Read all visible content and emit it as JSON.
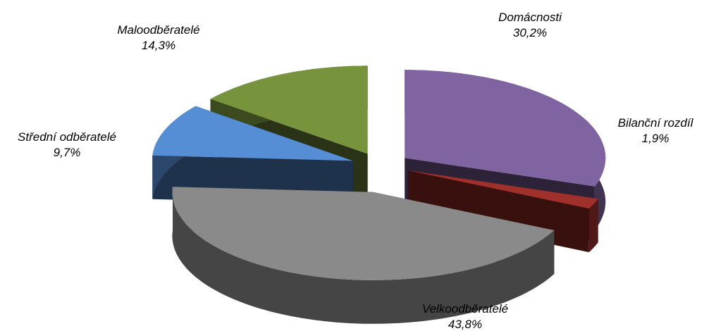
{
  "chart_data": {
    "type": "pie",
    "categories": [
      "Domácnosti",
      "Bilanční rozdíl",
      "Velkoodběratelé",
      "Střední odběratelé",
      "Maloodběratelé"
    ],
    "values": [
      30.2,
      1.9,
      43.8,
      9.7,
      14.3
    ],
    "value_labels": [
      "30,2%",
      "1,9%",
      "43,8%",
      "9,7%",
      "14,3%"
    ],
    "colors": [
      "#8064a2",
      "#a0302c",
      "#8a8a8a",
      "#558ed5",
      "#77933c"
    ]
  }
}
